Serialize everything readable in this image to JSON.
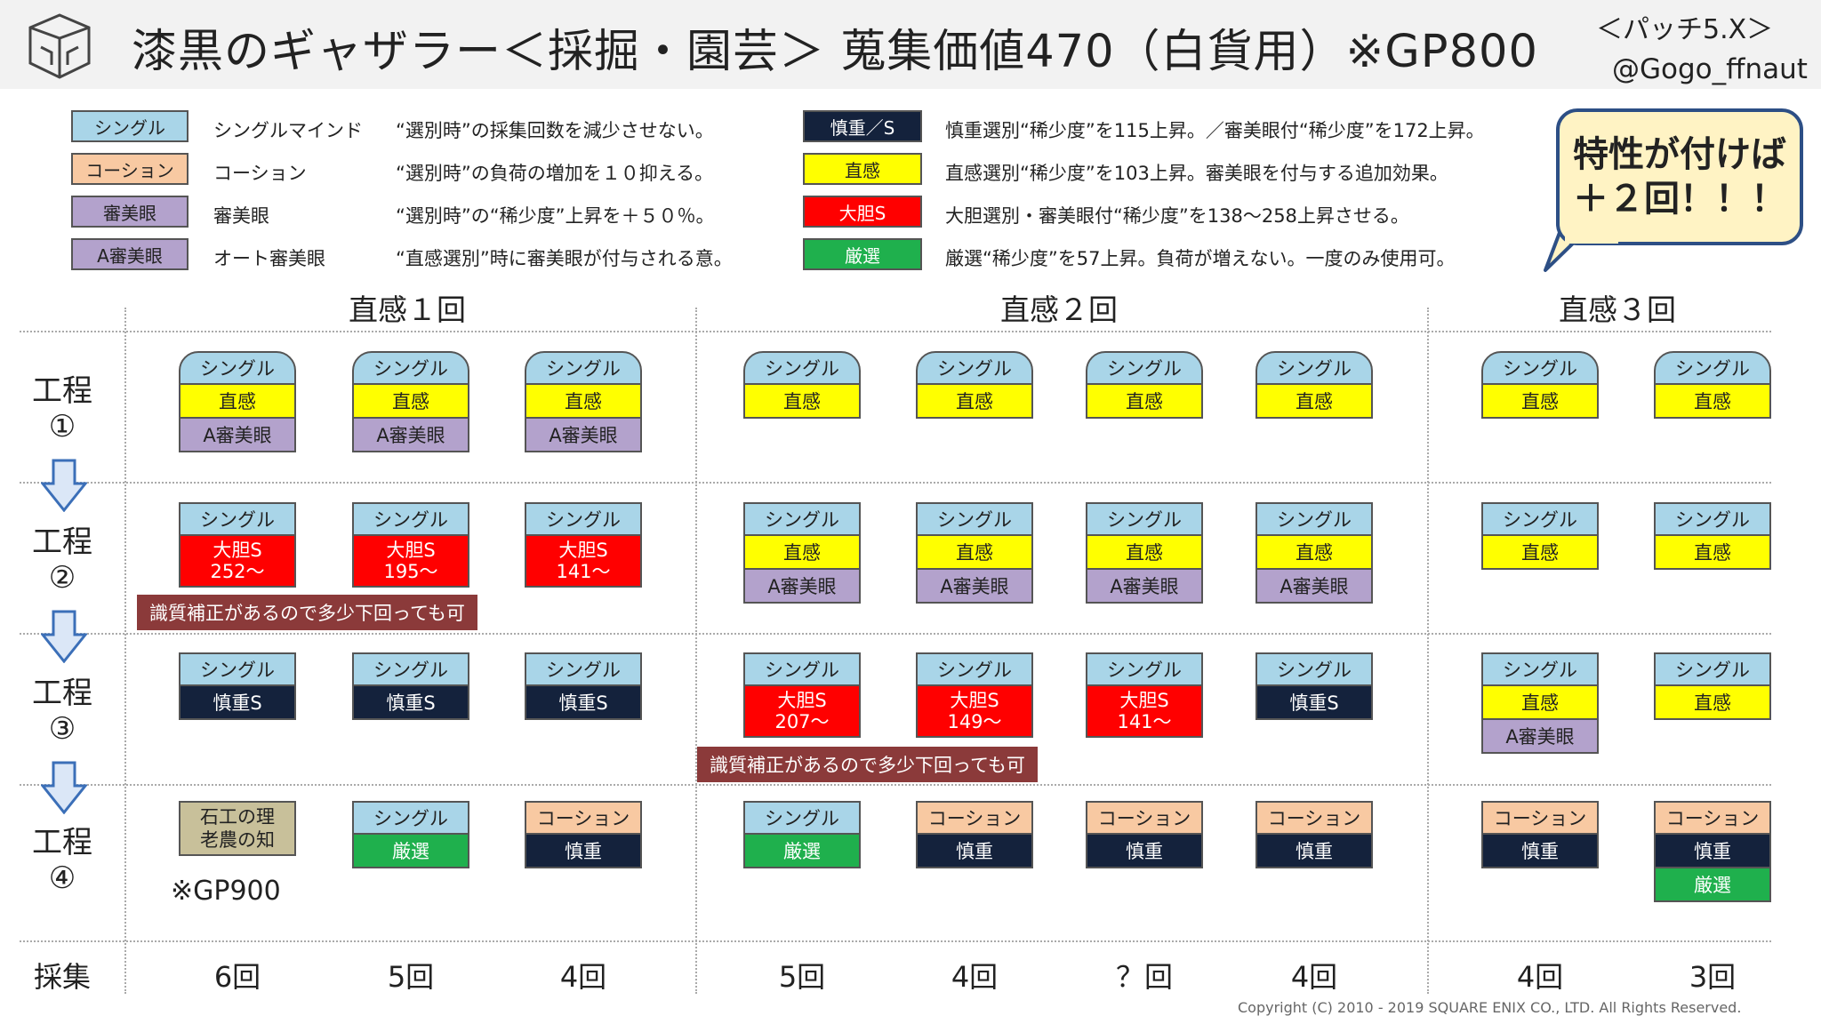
{
  "header": {
    "title": "漆黒のギャザラー＜採掘・園芸＞ 蒐集価値470（白貨用）※GP800",
    "patch": "＜パッチ5.X＞",
    "author": "@Gogo_ffnaut"
  },
  "colors": {
    "single": "#a9d5e8",
    "caution": "#f8c9a2",
    "discern": "#b3a2cc",
    "careful": "#14223c",
    "instinct": "#ffff00",
    "bold": "#ff0000",
    "strict": "#1fb04d",
    "note_bg": "#8b3a3a",
    "bubble_bg": "#fff3c4",
    "bubble_border": "#2d4f85"
  },
  "legend": {
    "left": [
      {
        "badge": "シングル",
        "name": "シングルマインド",
        "desc": "“選別時”の採集回数を減少させない。",
        "color": "#a9d5e8",
        "text_color": "#222222"
      },
      {
        "badge": "コーション",
        "name": "コーション",
        "desc": "“選別時”の負荷の増加を１０抑える。",
        "color": "#f8c9a2",
        "text_color": "#222222"
      },
      {
        "badge": "審美眼",
        "name": "審美眼",
        "desc": "“選別時”の“稀少度”上昇を＋５０％。",
        "color": "#b3a2cc",
        "text_color": "#222222"
      },
      {
        "badge": "A審美眼",
        "name": "オート審美眼",
        "desc": "“直感選別”時に審美眼が付与される意。",
        "color": "#b3a2cc",
        "text_color": "#222222"
      }
    ],
    "right": [
      {
        "badge": "慎重／S",
        "desc": "慎重選別“稀少度”を115上昇。／審美眼付“稀少度”を172上昇。",
        "color": "#14223c",
        "text_color": "#ffffff"
      },
      {
        "badge": "直感",
        "desc": "直感選別“稀少度”を103上昇。審美眼を付与する追加効果。",
        "color": "#ffff00",
        "text_color": "#222222"
      },
      {
        "badge": "大胆S",
        "desc": "大胆選別・審美眼付“稀少度”を138～258上昇させる。",
        "color": "#ff0000",
        "text_color": "#ffffff"
      },
      {
        "badge": "厳選",
        "desc": "厳選“稀少度”を57上昇。負荷が増えない。一度のみ使用可。",
        "color": "#1fb04d",
        "text_color": "#ffffff"
      }
    ]
  },
  "bubble": {
    "line1": "特性が付けば",
    "line2": "＋２回！！！"
  },
  "section_headers": [
    "直感１回",
    "直感２回",
    "直感３回"
  ],
  "steps": [
    {
      "line1": "工程",
      "line2": "①"
    },
    {
      "line1": "工程",
      "line2": "②"
    },
    {
      "line1": "工程",
      "line2": "③"
    },
    {
      "line1": "工程",
      "line2": "④"
    }
  ],
  "notes": {
    "note1": "識質補正があるので多少下回っても可",
    "note2": "識質補正があるので多少下回っても可",
    "gp900": "※GP900"
  },
  "gather": {
    "label": "採集",
    "values": [
      "6回",
      "5回",
      "4回",
      "5回",
      "4回",
      "？回",
      "4回",
      "4回",
      "3回"
    ]
  },
  "copyright": "Copyright (C) 2010 - 2019 SQUARE ENIX CO., LTD. All Rights Reserved.",
  "grid": [
    [
      [
        {
          "t": "シングル",
          "k": "single"
        },
        {
          "t": "直感",
          "k": "instinct"
        },
        {
          "t": "A審美眼",
          "k": "discern"
        }
      ],
      [
        {
          "t": "シングル",
          "k": "single"
        },
        {
          "t": "直感",
          "k": "instinct"
        },
        {
          "t": "A審美眼",
          "k": "discern"
        }
      ],
      [
        {
          "t": "シングル",
          "k": "single"
        },
        {
          "t": "直感",
          "k": "instinct"
        },
        {
          "t": "A審美眼",
          "k": "discern"
        }
      ],
      [
        {
          "t": "シングル",
          "k": "single"
        },
        {
          "t": "直感",
          "k": "instinct"
        }
      ],
      [
        {
          "t": "シングル",
          "k": "single"
        },
        {
          "t": "直感",
          "k": "instinct"
        }
      ],
      [
        {
          "t": "シングル",
          "k": "single"
        },
        {
          "t": "直感",
          "k": "instinct"
        }
      ],
      [
        {
          "t": "シングル",
          "k": "single"
        },
        {
          "t": "直感",
          "k": "instinct"
        }
      ],
      [
        {
          "t": "シングル",
          "k": "single"
        },
        {
          "t": "直感",
          "k": "instinct"
        }
      ],
      [
        {
          "t": "シングル",
          "k": "single"
        },
        {
          "t": "直感",
          "k": "instinct"
        }
      ]
    ],
    [
      [
        {
          "t": "シングル",
          "k": "single"
        },
        {
          "t": "大胆S",
          "t2": "252～",
          "k": "bold"
        }
      ],
      [
        {
          "t": "シングル",
          "k": "single"
        },
        {
          "t": "大胆S",
          "t2": "195～",
          "k": "bold"
        }
      ],
      [
        {
          "t": "シングル",
          "k": "single"
        },
        {
          "t": "大胆S",
          "t2": "141～",
          "k": "bold"
        }
      ],
      [
        {
          "t": "シングル",
          "k": "single"
        },
        {
          "t": "直感",
          "k": "instinct"
        },
        {
          "t": "A審美眼",
          "k": "discern"
        }
      ],
      [
        {
          "t": "シングル",
          "k": "single"
        },
        {
          "t": "直感",
          "k": "instinct"
        },
        {
          "t": "A審美眼",
          "k": "discern"
        }
      ],
      [
        {
          "t": "シングル",
          "k": "single"
        },
        {
          "t": "直感",
          "k": "instinct"
        },
        {
          "t": "A審美眼",
          "k": "discern"
        }
      ],
      [
        {
          "t": "シングル",
          "k": "single"
        },
        {
          "t": "直感",
          "k": "instinct"
        },
        {
          "t": "A審美眼",
          "k": "discern"
        }
      ],
      [
        {
          "t": "シングル",
          "k": "single"
        },
        {
          "t": "直感",
          "k": "instinct"
        }
      ],
      [
        {
          "t": "シングル",
          "k": "single"
        },
        {
          "t": "直感",
          "k": "instinct"
        }
      ]
    ],
    [
      [
        {
          "t": "シングル",
          "k": "single"
        },
        {
          "t": "慎重S",
          "k": "careful"
        }
      ],
      [
        {
          "t": "シングル",
          "k": "single"
        },
        {
          "t": "慎重S",
          "k": "careful"
        }
      ],
      [
        {
          "t": "シングル",
          "k": "single"
        },
        {
          "t": "慎重S",
          "k": "careful"
        }
      ],
      [
        {
          "t": "シングル",
          "k": "single"
        },
        {
          "t": "大胆S",
          "t2": "207～",
          "k": "bold"
        }
      ],
      [
        {
          "t": "シングル",
          "k": "single"
        },
        {
          "t": "大胆S",
          "t2": "149～",
          "k": "bold"
        }
      ],
      [
        {
          "t": "シングル",
          "k": "single"
        },
        {
          "t": "大胆S",
          "t2": "141～",
          "k": "bold"
        }
      ],
      [
        {
          "t": "シングル",
          "k": "single"
        },
        {
          "t": "慎重S",
          "k": "careful"
        }
      ],
      [
        {
          "t": "シングル",
          "k": "single"
        },
        {
          "t": "直感",
          "k": "instinct"
        },
        {
          "t": "A審美眼",
          "k": "discern"
        }
      ],
      [
        {
          "t": "シングル",
          "k": "single"
        },
        {
          "t": "直感",
          "k": "instinct"
        }
      ]
    ],
    [
      [
        {
          "t": "石工の理",
          "t2": "老農の知",
          "k": "khaki"
        }
      ],
      [
        {
          "t": "シングル",
          "k": "single"
        },
        {
          "t": "厳選",
          "k": "strict"
        }
      ],
      [
        {
          "t": "コーション",
          "k": "caution"
        },
        {
          "t": "慎重",
          "k": "careful"
        }
      ],
      [
        {
          "t": "シングル",
          "k": "single"
        },
        {
          "t": "厳選",
          "k": "strict"
        }
      ],
      [
        {
          "t": "コーション",
          "k": "caution"
        },
        {
          "t": "慎重",
          "k": "careful"
        }
      ],
      [
        {
          "t": "コーション",
          "k": "caution"
        },
        {
          "t": "慎重",
          "k": "careful"
        }
      ],
      [
        {
          "t": "コーション",
          "k": "caution"
        },
        {
          "t": "慎重",
          "k": "careful"
        }
      ],
      [
        {
          "t": "コーション",
          "k": "caution"
        },
        {
          "t": "慎重",
          "k": "careful"
        }
      ],
      [
        {
          "t": "コーション",
          "k": "caution"
        },
        {
          "t": "慎重",
          "k": "careful"
        },
        {
          "t": "厳選",
          "k": "strict"
        }
      ]
    ]
  ]
}
